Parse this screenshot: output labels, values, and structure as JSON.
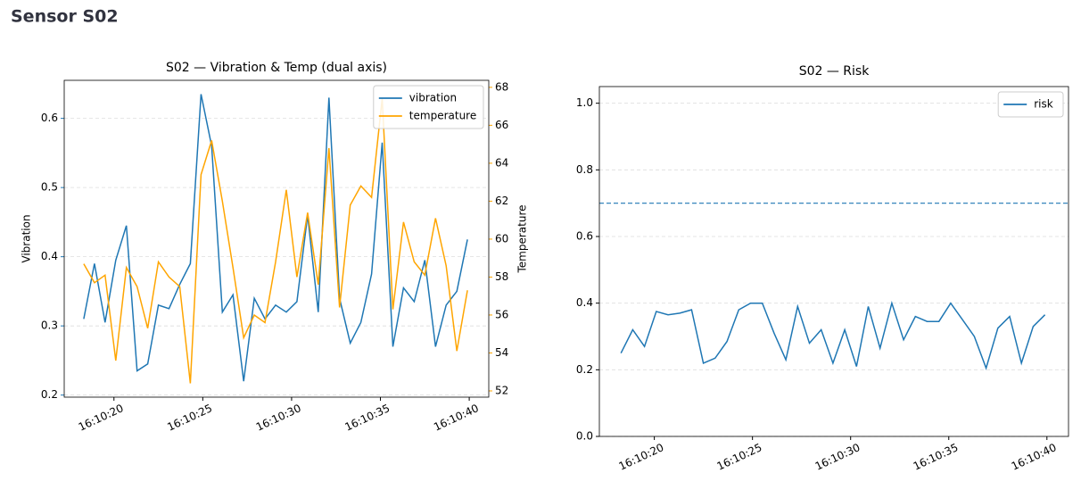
{
  "header": {
    "title": "Sensor S02"
  },
  "chart_data": [
    {
      "type": "line",
      "title": "S02 — Vibration & Temp (dual axis)",
      "ylabel": "Vibration",
      "y2label": "Temperature",
      "x": [
        18.3,
        18.9,
        19.5,
        20.1,
        20.7,
        21.3,
        21.9,
        22.5,
        23.1,
        23.7,
        24.3,
        24.9,
        25.5,
        26.1,
        26.7,
        27.3,
        27.9,
        28.5,
        29.1,
        29.7,
        30.3,
        30.9,
        31.5,
        32.1,
        32.7,
        33.3,
        33.9,
        34.5,
        35.1,
        35.7,
        36.3,
        36.9,
        37.5,
        38.1,
        38.7,
        39.3,
        39.9
      ],
      "series": [
        {
          "name": "vibration",
          "color": "#1f77b4",
          "axis": "y",
          "values": [
            0.31,
            0.39,
            0.305,
            0.395,
            0.445,
            0.235,
            0.245,
            0.33,
            0.325,
            0.36,
            0.39,
            0.635,
            0.56,
            0.32,
            0.345,
            0.22,
            0.34,
            0.31,
            0.33,
            0.32,
            0.335,
            0.46,
            0.32,
            0.63,
            0.34,
            0.275,
            0.305,
            0.375,
            0.565,
            0.27,
            0.355,
            0.335,
            0.395,
            0.27,
            0.33,
            0.35,
            0.425
          ]
        },
        {
          "name": "temperature",
          "color": "#ffa500",
          "axis": "y2",
          "values": [
            58.7,
            57.7,
            58.1,
            53.6,
            58.5,
            57.5,
            55.3,
            58.8,
            58.0,
            57.5,
            52.4,
            63.4,
            65.2,
            62.0,
            58.5,
            54.8,
            56.0,
            55.6,
            58.8,
            62.6,
            58.0,
            61.4,
            57.6,
            64.8,
            56.4,
            61.8,
            62.8,
            62.2,
            67.4,
            56.3,
            60.9,
            58.8,
            58.1,
            61.1,
            58.6,
            54.1,
            57.3
          ]
        }
      ],
      "xlim": [
        17.2,
        41.1
      ],
      "xticks": [
        {
          "value": 20,
          "label": "16:10:20"
        },
        {
          "value": 25,
          "label": "16:10:25"
        },
        {
          "value": 30,
          "label": "16:10:30"
        },
        {
          "value": 35,
          "label": "16:10:35"
        },
        {
          "value": 40,
          "label": "16:10:40"
        }
      ],
      "ylim": [
        0.197,
        0.655
      ],
      "yticks": [
        0.2,
        0.3,
        0.4,
        0.5,
        0.6
      ],
      "y2lim": [
        51.67,
        68.37
      ],
      "y2ticks": [
        52,
        54,
        56,
        58,
        60,
        62,
        64,
        66,
        68
      ],
      "grid": true,
      "legend": "upper-right"
    },
    {
      "type": "line",
      "title": "S02 — Risk",
      "x": [
        18.3,
        18.9,
        19.5,
        20.1,
        20.7,
        21.3,
        21.9,
        22.5,
        23.1,
        23.7,
        24.3,
        24.9,
        25.5,
        26.1,
        26.7,
        27.3,
        27.9,
        28.5,
        29.1,
        29.7,
        30.3,
        30.9,
        31.5,
        32.1,
        32.7,
        33.3,
        33.9,
        34.5,
        35.1,
        35.7,
        36.3,
        36.9,
        37.5,
        38.1,
        38.7,
        39.3,
        39.9
      ],
      "series": [
        {
          "name": "risk",
          "color": "#1f77b4",
          "values": [
            0.25,
            0.32,
            0.27,
            0.375,
            0.365,
            0.37,
            0.38,
            0.22,
            0.235,
            0.285,
            0.38,
            0.4,
            0.4,
            0.31,
            0.23,
            0.39,
            0.28,
            0.32,
            0.22,
            0.32,
            0.21,
            0.39,
            0.265,
            0.4,
            0.29,
            0.36,
            0.345,
            0.345,
            0.4,
            0.35,
            0.3,
            0.205,
            0.325,
            0.36,
            0.22,
            0.33,
            0.365
          ]
        }
      ],
      "hline": {
        "value": 0.7,
        "color": "#1f77b4"
      },
      "xlim": [
        17.2,
        41.1
      ],
      "xticks": [
        {
          "value": 20,
          "label": "16:10:20"
        },
        {
          "value": 25,
          "label": "16:10:25"
        },
        {
          "value": 30,
          "label": "16:10:30"
        },
        {
          "value": 35,
          "label": "16:10:35"
        },
        {
          "value": 40,
          "label": "16:10:40"
        }
      ],
      "ylim": [
        0,
        1.05
      ],
      "yticks": [
        {
          "value": 0,
          "label": "0.0"
        },
        0.2,
        0.4,
        0.6,
        0.8,
        {
          "value": 1,
          "label": "1.0"
        }
      ],
      "grid": true,
      "legend": "upper-right"
    }
  ]
}
